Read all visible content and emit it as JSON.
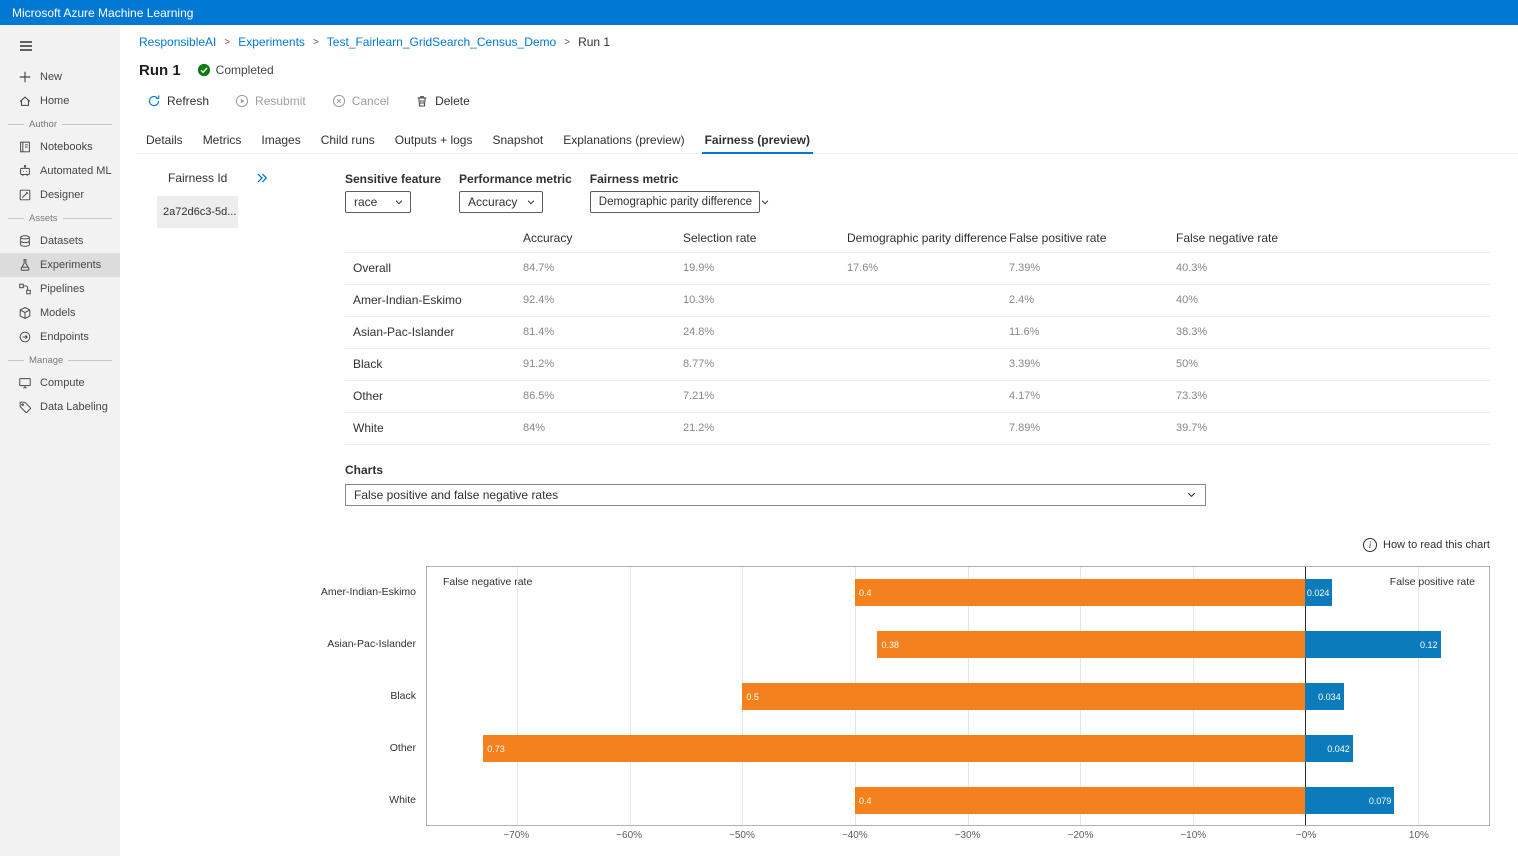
{
  "app": {
    "title": "Microsoft Azure Machine Learning"
  },
  "sidebar": {
    "active": "Experiments",
    "new": "New",
    "home": "Home",
    "section_author": "Author",
    "notebooks": "Notebooks",
    "automated_ml": "Automated ML",
    "designer": "Designer",
    "section_assets": "Assets",
    "datasets": "Datasets",
    "experiments": "Experiments",
    "pipelines": "Pipelines",
    "models": "Models",
    "endpoints": "Endpoints",
    "section_manage": "Manage",
    "compute": "Compute",
    "data_labeling": "Data Labeling"
  },
  "breadcrumb": {
    "items": [
      "ResponsibleAI",
      "Experiments",
      "Test_Fairlearn_GridSearch_Census_Demo",
      "Run 1"
    ],
    "separator": ">"
  },
  "header": {
    "title": "Run 1",
    "status": "Completed"
  },
  "toolbar": {
    "refresh": "Refresh",
    "resubmit": "Resubmit",
    "cancel": "Cancel",
    "delete": "Delete"
  },
  "tabs": {
    "items": [
      "Details",
      "Metrics",
      "Images",
      "Child runs",
      "Outputs + logs",
      "Snapshot",
      "Explanations (preview)",
      "Fairness (preview)"
    ],
    "active": "Fairness (preview)"
  },
  "fairness_panel": {
    "title": "Fairness Id",
    "run_id": "2a72d6c3-5d..."
  },
  "controls": {
    "sensitive_feature": {
      "label": "Sensitive feature",
      "value": "race"
    },
    "performance_metric": {
      "label": "Performance metric",
      "value": "Accuracy"
    },
    "fairness_metric": {
      "label": "Fairness metric",
      "value": "Demographic parity difference"
    }
  },
  "metrics_table": {
    "columns": [
      "Accuracy",
      "Selection rate",
      "Demographic parity difference",
      "False positive rate",
      "False negative rate"
    ],
    "rows": [
      {
        "label": "Overall",
        "values": [
          "84.7%",
          "19.9%",
          "17.6%",
          "7.39%",
          "40.3%"
        ]
      },
      {
        "label": "Amer-Indian-Eskimo",
        "values": [
          "92.4%",
          "10.3%",
          "",
          "2.4%",
          "40%"
        ]
      },
      {
        "label": "Asian-Pac-Islander",
        "values": [
          "81.4%",
          "24.8%",
          "",
          "11.6%",
          "38.3%"
        ]
      },
      {
        "label": "Black",
        "values": [
          "91.2%",
          "8.77%",
          "",
          "3.39%",
          "50%"
        ]
      },
      {
        "label": "Other",
        "values": [
          "86.5%",
          "7.21%",
          "",
          "4.17%",
          "73.3%"
        ]
      },
      {
        "label": "White",
        "values": [
          "84%",
          "21.2%",
          "",
          "7.89%",
          "39.7%"
        ]
      }
    ]
  },
  "charts_section": {
    "label": "Charts",
    "selector_value": "False positive and false negative rates",
    "help": "How to read this chart"
  },
  "chart_data": {
    "type": "bar",
    "orientation": "horizontal",
    "categories": [
      "Amer-Indian-Eskimo",
      "Asian-Pac-Islander",
      "Black",
      "Other",
      "White"
    ],
    "series": [
      {
        "name": "False negative rate",
        "direction": "left",
        "color": "#f5811e",
        "values": [
          0.4,
          0.38,
          0.5,
          0.73,
          0.4
        ],
        "labels": [
          "0.4",
          "0.38",
          "0.5",
          "0.73",
          "0.4"
        ]
      },
      {
        "name": "False positive rate",
        "direction": "right",
        "color": "#0c7bbb",
        "values": [
          0.024,
          0.12,
          0.034,
          0.042,
          0.079
        ],
        "labels": [
          "0.024",
          "0.12",
          "0.034",
          "0.042",
          "0.079"
        ]
      }
    ],
    "x_ticks": [
      {
        "value": -70,
        "label": "−70%"
      },
      {
        "value": -60,
        "label": "−60%"
      },
      {
        "value": -50,
        "label": "−50%"
      },
      {
        "value": -40,
        "label": "−40%"
      },
      {
        "value": -30,
        "label": "−30%"
      },
      {
        "value": -20,
        "label": "−20%"
      },
      {
        "value": -10,
        "label": "−10%"
      },
      {
        "value": 0,
        "label": "−0%"
      },
      {
        "value": 10,
        "label": "10%"
      }
    ],
    "xlim": [
      -78,
      16.3
    ],
    "grid": true,
    "axis_label_left": "False negative rate",
    "axis_label_right": "False positive rate"
  },
  "colors": {
    "accent": "#0078d4",
    "status_completed": "#107c10",
    "fnr_bar": "#f5811e",
    "fpr_bar": "#0c7bbb"
  }
}
